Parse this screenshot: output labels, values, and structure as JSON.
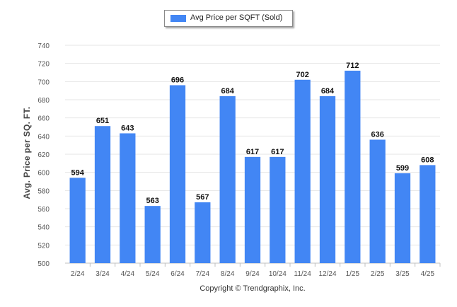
{
  "legend": {
    "label": "Avg Price per SQFT (Sold)"
  },
  "footer": {
    "text": "Copyright © Trendgraphix, Inc."
  },
  "colors": {
    "bar": "#4286f4",
    "grid": "#e6e6e6",
    "axis": "#c0c0c0",
    "tick_text": "#555555"
  },
  "chart_data": {
    "type": "bar",
    "ylabel": "Avg. Price per SQ. FT.",
    "categories": [
      "2/24",
      "3/24",
      "4/24",
      "5/24",
      "6/24",
      "7/24",
      "8/24",
      "9/24",
      "10/24",
      "11/24",
      "12/24",
      "1/25",
      "2/25",
      "3/25",
      "4/25"
    ],
    "series": [
      {
        "name": "Avg Price per SQFT (Sold)",
        "values": [
          594,
          651,
          643,
          563,
          696,
          567,
          684,
          617,
          617,
          702,
          684,
          712,
          636,
          599,
          608
        ]
      }
    ],
    "ylim": [
      500,
      740
    ],
    "yticks": [
      500,
      520,
      540,
      560,
      580,
      600,
      620,
      640,
      660,
      680,
      700,
      720,
      740
    ],
    "grid": true,
    "legend_position": "top-center",
    "data_labels": true
  }
}
